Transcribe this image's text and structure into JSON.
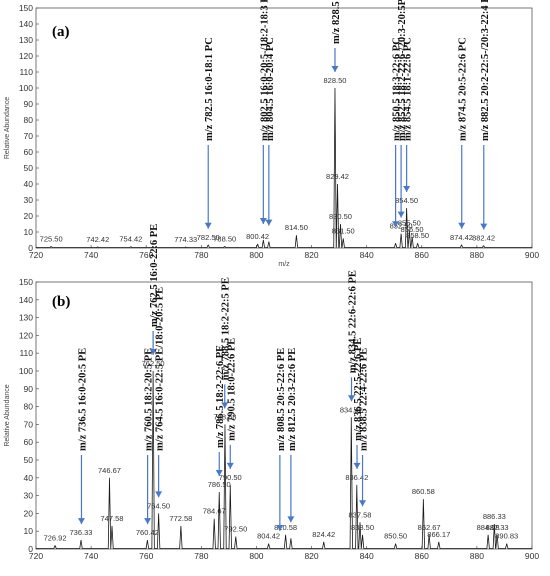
{
  "chart_data": [
    {
      "type": "line",
      "panel_label": "(a)",
      "xlabel": "m/z",
      "ylabel": "Relative Abundance",
      "xlim": [
        720,
        900
      ],
      "ylim": [
        0,
        150
      ],
      "xticks": [
        "720",
        "740",
        "760",
        "780",
        "800",
        "820",
        "840",
        "860",
        "880",
        "900"
      ],
      "yticks": [
        "0",
        "10",
        "20",
        "30",
        "40",
        "50",
        "60",
        "70",
        "80",
        "90",
        "100",
        "110",
        "120",
        "130",
        "140",
        "150"
      ],
      "peaks": [
        {
          "mz": 725.5,
          "y": 1,
          "label": "725.50"
        },
        {
          "mz": 742.42,
          "y": 0.6,
          "label": "742.42"
        },
        {
          "mz": 754.42,
          "y": 0.8,
          "label": "754.42"
        },
        {
          "mz": 774.33,
          "y": 0.6,
          "label": "774.33"
        },
        {
          "mz": 782.5,
          "y": 2,
          "label": "782.50"
        },
        {
          "mz": 788.5,
          "y": 1,
          "label": "788.50"
        },
        {
          "mz": 800.42,
          "y": 2.5,
          "label": "800.42"
        },
        {
          "mz": 802.5,
          "y": 5,
          "label": ""
        },
        {
          "mz": 804.5,
          "y": 4,
          "label": ""
        },
        {
          "mz": 814.5,
          "y": 8,
          "label": "814.50"
        },
        {
          "mz": 828.5,
          "y": 100,
          "label": "828.50"
        },
        {
          "mz": 829.42,
          "y": 40,
          "label": "829.42"
        },
        {
          "mz": 830.5,
          "y": 15,
          "label": "830.50"
        },
        {
          "mz": 831.5,
          "y": 6,
          "label": "831.50"
        },
        {
          "mz": 850.5,
          "y": 3,
          "label": ""
        },
        {
          "mz": 852.5,
          "y": 9,
          "label": "852.50"
        },
        {
          "mz": 854.5,
          "y": 25,
          "label": "854.50"
        },
        {
          "mz": 855.5,
          "y": 11,
          "label": "855.50"
        },
        {
          "mz": 856.5,
          "y": 7,
          "label": "856.50"
        },
        {
          "mz": 858.5,
          "y": 3,
          "label": "858.50"
        },
        {
          "mz": 874.42,
          "y": 2,
          "label": "874.42"
        },
        {
          "mz": 882.42,
          "y": 1.5,
          "label": "882.42"
        }
      ],
      "annotations": [
        {
          "mz": 782.5,
          "text": "m/z 782.5  16:0-18:1 PC"
        },
        {
          "mz": 802.5,
          "text": "m/z 802.5  16:0-20:5-/18:2-18:3 PC"
        },
        {
          "mz": 804.5,
          "text": "m/z 804.5  16:0-20:4 PC"
        },
        {
          "mz": 828.5,
          "text": "m/z 828.5  16:0-22:6"
        },
        {
          "mz": 850.5,
          "text": "m/z 850.5  18:3-22:6 PC"
        },
        {
          "mz": 852.5,
          "text": "m/z 852.5  18:2-22:6-/20:3-20:5PC"
        },
        {
          "mz": 854.5,
          "text": "m/z 854.5  18:1-22:6 PC"
        },
        {
          "mz": 874.5,
          "text": "m/z 874.5  20:5-22:6 PC"
        },
        {
          "mz": 882.5,
          "text": "m/z 882.5 20:2-22:5-/20:3-22:4 PC"
        }
      ]
    },
    {
      "type": "line",
      "panel_label": "(b)",
      "xlabel": "",
      "ylabel": "Relative Abundance",
      "xlim": [
        720,
        900
      ],
      "ylim": [
        0,
        150
      ],
      "xticks": [
        "720",
        "740",
        "760",
        "780",
        "800",
        "820",
        "840",
        "860",
        "880",
        "900"
      ],
      "yticks": [
        "0",
        "10",
        "20",
        "30",
        "40",
        "50",
        "60",
        "70",
        "80",
        "90",
        "100",
        "110",
        "120",
        "130",
        "140",
        "150"
      ],
      "peaks": [
        {
          "mz": 726.92,
          "y": 2,
          "label": "726.92"
        },
        {
          "mz": 736.33,
          "y": 5,
          "label": "736.33"
        },
        {
          "mz": 746.67,
          "y": 40,
          "label": "746.67"
        },
        {
          "mz": 747.58,
          "y": 13,
          "label": "747.58"
        },
        {
          "mz": 760.42,
          "y": 5,
          "label": "760.42"
        },
        {
          "mz": 762.5,
          "y": 100,
          "label": "762.50"
        },
        {
          "mz": 764.5,
          "y": 20,
          "label": "764.50"
        },
        {
          "mz": 772.58,
          "y": 13,
          "label": "772.58"
        },
        {
          "mz": 784.67,
          "y": 17,
          "label": "784.67"
        },
        {
          "mz": 786.5,
          "y": 32,
          "label": "786.50"
        },
        {
          "mz": 788.58,
          "y": 70,
          "label": "788.58"
        },
        {
          "mz": 790.5,
          "y": 36,
          "label": "790.50"
        },
        {
          "mz": 792.5,
          "y": 7,
          "label": "792.50"
        },
        {
          "mz": 804.42,
          "y": 3,
          "label": "804.42"
        },
        {
          "mz": 810.58,
          "y": 8,
          "label": "810.58"
        },
        {
          "mz": 812.5,
          "y": 6,
          "label": ""
        },
        {
          "mz": 824.42,
          "y": 4,
          "label": "824.42"
        },
        {
          "mz": 834.42,
          "y": 74,
          "label": "834.42"
        },
        {
          "mz": 836.42,
          "y": 36,
          "label": "836.42"
        },
        {
          "mz": 837.58,
          "y": 15,
          "label": "837.58"
        },
        {
          "mz": 838.5,
          "y": 8,
          "label": "838.50"
        },
        {
          "mz": 850.5,
          "y": 3,
          "label": "850.50"
        },
        {
          "mz": 860.58,
          "y": 28,
          "label": "860.58"
        },
        {
          "mz": 862.67,
          "y": 8,
          "label": "862.67"
        },
        {
          "mz": 866.17,
          "y": 4,
          "label": "866.17"
        },
        {
          "mz": 884.08,
          "y": 8,
          "label": "884.08"
        },
        {
          "mz": 886.33,
          "y": 14,
          "label": "886.33"
        },
        {
          "mz": 887.33,
          "y": 8,
          "label": "887.33"
        },
        {
          "mz": 890.83,
          "y": 3,
          "label": "890.83"
        }
      ],
      "annotations": [
        {
          "mz": 736.5,
          "text": "m/z 736.5 16:0-20:5 PE"
        },
        {
          "mz": 760.5,
          "text": "m/z 760.5 18:2-20:5 PE"
        },
        {
          "mz": 762.5,
          "text": "m/z 762.5 16:0-22:6 PE"
        },
        {
          "mz": 764.5,
          "text": "m/z 764.5 16:0-22:5 PE/18:0-20:5 PE"
        },
        {
          "mz": 786.5,
          "text": "m/z 786.5 18:2-22:6 PE"
        },
        {
          "mz": 788.5,
          "text": "m/z 788.5 18:2-22:5 PE"
        },
        {
          "mz": 790.5,
          "text": "m/z 790.5 18:0-22:6 PE"
        },
        {
          "mz": 808.5,
          "text": "m/z 808.5 20:5-22:6 PE"
        },
        {
          "mz": 812.5,
          "text": "m/z 812.5 20:3-22:6 PE"
        },
        {
          "mz": 834.5,
          "text": "m/z 834.5 22:6-22:6 PE"
        },
        {
          "mz": 836.5,
          "text": "m/z 836.5 22:5-22:6 PE"
        },
        {
          "mz": 838.5,
          "text": "m/z 838.5 22:4-22:6 PE"
        }
      ]
    }
  ]
}
